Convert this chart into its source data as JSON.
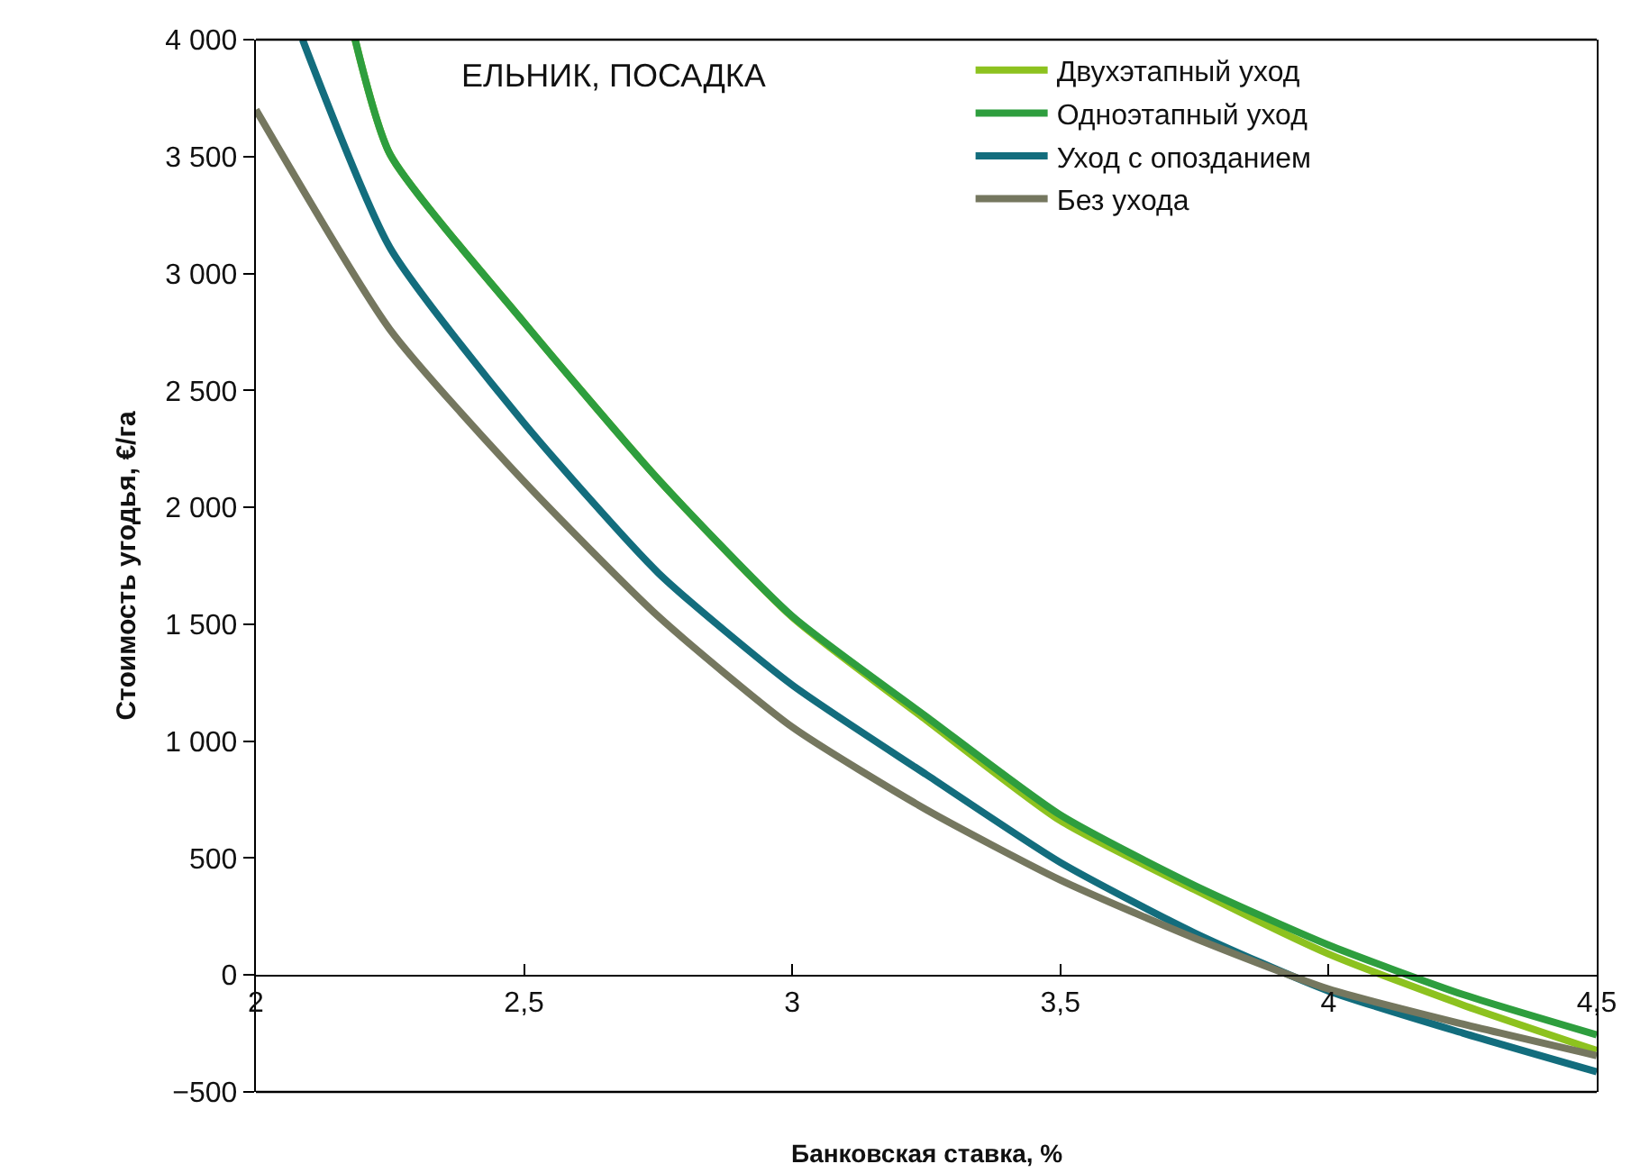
{
  "chart_data": {
    "type": "line",
    "title": "ЕЛЬНИК, ПОСАДКА",
    "xlabel": "Банковская ставка, %",
    "ylabel": "Стоимость угодья, €/га",
    "xlim": [
      2,
      4.5
    ],
    "xticks": [
      2,
      {
        "value": 2.5,
        "label": "2,5"
      },
      3,
      {
        "value": 3.5,
        "label": "3,5"
      },
      4,
      {
        "value": 4.5,
        "label": "4,5"
      }
    ],
    "ylim": [
      -500,
      4000
    ],
    "yticks": [
      {
        "value": -500,
        "label": "−500"
      },
      0,
      500,
      {
        "value": 1000,
        "label": "1 000"
      },
      {
        "value": 1500,
        "label": "1 500"
      },
      {
        "value": 2000,
        "label": "2 000"
      },
      {
        "value": 2500,
        "label": "2 500"
      },
      {
        "value": 3000,
        "label": "3 000"
      },
      {
        "value": 3500,
        "label": "3 500"
      },
      {
        "value": 4000,
        "label": "4 000"
      }
    ],
    "grid": false,
    "legend": "top right",
    "marker": "none",
    "line_style": "solid",
    "series": [
      {
        "name": "Двухэтапный уход",
        "color": "#8dc21f",
        "x": [
          2.185,
          2.25,
          2.5,
          2.75,
          3,
          3.25,
          3.5,
          3.75,
          4,
          4.25,
          4.5
        ],
        "values": [
          4000,
          3510,
          2790,
          2120,
          1530,
          1090,
          660,
          365,
          90,
          -128,
          -323
        ]
      },
      {
        "name": "Одноэтапный уход",
        "color": "#2e9e3e",
        "x": [
          2.185,
          2.25,
          2.5,
          2.75,
          3,
          3.25,
          3.5,
          3.75,
          4,
          4.25,
          4.5
        ],
        "values": [
          4000,
          3510,
          2790,
          2120,
          1534,
          1105,
          684,
          383,
          128,
          -83,
          -256
        ]
      },
      {
        "name": "Уход с опозданием",
        "color": "#136d7d",
        "x": [
          2.087,
          2.25,
          2.5,
          2.75,
          3,
          3.25,
          3.5,
          3.75,
          4,
          4.25,
          4.5
        ],
        "values": [
          4000,
          3110,
          2360,
          1720,
          1240,
          857,
          481,
          180,
          -68,
          -248,
          -414
        ]
      },
      {
        "name": "Без ухода",
        "color": "#75775f",
        "x": [
          2,
          2.25,
          2.5,
          2.75,
          3,
          3.25,
          3.5,
          3.75,
          4,
          4.25,
          4.5
        ],
        "values": [
          3700,
          2760,
          2110,
          1534,
          1060,
          707,
          406,
          158,
          -60,
          -210,
          -345
        ]
      }
    ]
  }
}
